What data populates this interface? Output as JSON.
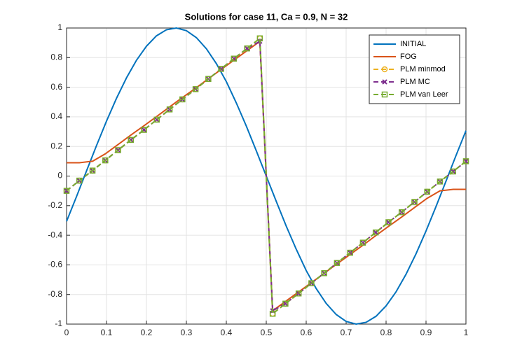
{
  "chart_data": {
    "type": "line",
    "title": "Solutions for case 11, Ca = 0.9, N = 32",
    "xlim": [
      0,
      1
    ],
    "ylim": [
      -1,
      1
    ],
    "xticks": [
      0,
      0.1,
      0.2,
      0.3,
      0.4,
      0.5,
      0.6,
      0.7,
      0.8,
      0.9,
      1
    ],
    "yticks": [
      -1,
      -0.8,
      -0.6,
      -0.4,
      -0.2,
      0,
      0.2,
      0.4,
      0.6,
      0.8,
      1
    ],
    "grid": true,
    "legend": "northeast",
    "series": [
      {
        "name": "INITIAL",
        "color": "#0072BD",
        "marker": "none",
        "dash": false,
        "x": [
          0,
          0.025,
          0.05,
          0.075,
          0.1,
          0.125,
          0.15,
          0.175,
          0.2,
          0.225,
          0.25,
          0.275,
          0.3,
          0.325,
          0.35,
          0.375,
          0.4,
          0.425,
          0.45,
          0.475,
          0.5,
          0.525,
          0.55,
          0.575,
          0.6,
          0.625,
          0.65,
          0.675,
          0.7,
          0.725,
          0.75,
          0.775,
          0.8,
          0.825,
          0.85,
          0.875,
          0.9,
          0.925,
          0.95,
          0.975,
          1
        ],
        "values": [
          -0.306,
          -0.138,
          0.035,
          0.206,
          0.371,
          0.525,
          0.663,
          0.782,
          0.877,
          0.947,
          0.988,
          1.0,
          0.982,
          0.935,
          0.86,
          0.76,
          0.638,
          0.494,
          0.338,
          0.171,
          0,
          -0.171,
          -0.338,
          -0.494,
          -0.638,
          -0.76,
          -0.86,
          -0.935,
          -0.982,
          -1.0,
          -0.988,
          -0.947,
          -0.877,
          -0.782,
          -0.663,
          -0.525,
          -0.371,
          -0.206,
          -0.035,
          0.138,
          0.306
        ]
      },
      {
        "name": "FOG",
        "color": "#D95319",
        "marker": "none",
        "dash": false,
        "x": [
          0,
          0.032,
          0.065,
          0.097,
          0.129,
          0.161,
          0.194,
          0.226,
          0.258,
          0.29,
          0.323,
          0.355,
          0.387,
          0.419,
          0.452,
          0.484,
          0.516,
          0.548,
          0.581,
          0.613,
          0.645,
          0.677,
          0.71,
          0.742,
          0.774,
          0.806,
          0.839,
          0.871,
          0.903,
          0.935,
          0.968,
          1
        ],
        "values": [
          0.09,
          0.09,
          0.1,
          0.15,
          0.213,
          0.277,
          0.34,
          0.403,
          0.467,
          0.53,
          0.593,
          0.657,
          0.72,
          0.783,
          0.847,
          0.91,
          -0.91,
          -0.847,
          -0.783,
          -0.72,
          -0.657,
          -0.593,
          -0.53,
          -0.467,
          -0.403,
          -0.34,
          -0.277,
          -0.213,
          -0.15,
          -0.1,
          -0.09,
          -0.09
        ]
      },
      {
        "name": "PLM minmod",
        "color": "#EDB120",
        "marker": "circle",
        "dash": true,
        "x": [
          0,
          0.032,
          0.065,
          0.097,
          0.129,
          0.161,
          0.194,
          0.226,
          0.258,
          0.29,
          0.323,
          0.355,
          0.387,
          0.419,
          0.452,
          0.484,
          0.516,
          0.548,
          0.581,
          0.613,
          0.645,
          0.677,
          0.71,
          0.742,
          0.774,
          0.806,
          0.839,
          0.871,
          0.903,
          0.935,
          0.968,
          1
        ],
        "values": [
          -0.1,
          -0.031,
          0.037,
          0.106,
          0.175,
          0.244,
          0.312,
          0.381,
          0.45,
          0.518,
          0.587,
          0.656,
          0.724,
          0.793,
          0.862,
          0.93,
          -0.93,
          -0.862,
          -0.793,
          -0.724,
          -0.656,
          -0.587,
          -0.518,
          -0.45,
          -0.381,
          -0.312,
          -0.244,
          -0.175,
          -0.106,
          -0.037,
          0.031,
          0.1
        ]
      },
      {
        "name": "PLM MC",
        "color": "#7E2F8E",
        "marker": "x",
        "dash": true,
        "x": [
          0,
          0.032,
          0.065,
          0.097,
          0.129,
          0.161,
          0.194,
          0.226,
          0.258,
          0.29,
          0.323,
          0.355,
          0.387,
          0.419,
          0.452,
          0.484,
          0.516,
          0.548,
          0.581,
          0.613,
          0.645,
          0.677,
          0.71,
          0.742,
          0.774,
          0.806,
          0.839,
          0.871,
          0.903,
          0.935,
          0.968,
          1
        ],
        "values": [
          -0.1,
          -0.031,
          0.037,
          0.106,
          0.175,
          0.244,
          0.312,
          0.381,
          0.45,
          0.518,
          0.587,
          0.656,
          0.724,
          0.793,
          0.862,
          0.91,
          -0.91,
          -0.862,
          -0.793,
          -0.724,
          -0.656,
          -0.587,
          -0.518,
          -0.45,
          -0.381,
          -0.312,
          -0.244,
          -0.175,
          -0.106,
          -0.037,
          0.031,
          0.1
        ]
      },
      {
        "name": "PLM van Leer",
        "color": "#77AC30",
        "marker": "square",
        "dash": true,
        "x": [
          0,
          0.032,
          0.065,
          0.097,
          0.129,
          0.161,
          0.194,
          0.226,
          0.258,
          0.29,
          0.323,
          0.355,
          0.387,
          0.419,
          0.452,
          0.484,
          0.516,
          0.548,
          0.581,
          0.613,
          0.645,
          0.677,
          0.71,
          0.742,
          0.774,
          0.806,
          0.839,
          0.871,
          0.903,
          0.935,
          0.968,
          1
        ],
        "values": [
          -0.1,
          -0.031,
          0.037,
          0.106,
          0.175,
          0.244,
          0.312,
          0.381,
          0.45,
          0.518,
          0.587,
          0.656,
          0.724,
          0.793,
          0.862,
          0.93,
          -0.93,
          -0.862,
          -0.793,
          -0.724,
          -0.656,
          -0.587,
          -0.518,
          -0.45,
          -0.381,
          -0.312,
          -0.244,
          -0.175,
          -0.106,
          -0.037,
          0.031,
          0.1
        ]
      }
    ]
  }
}
